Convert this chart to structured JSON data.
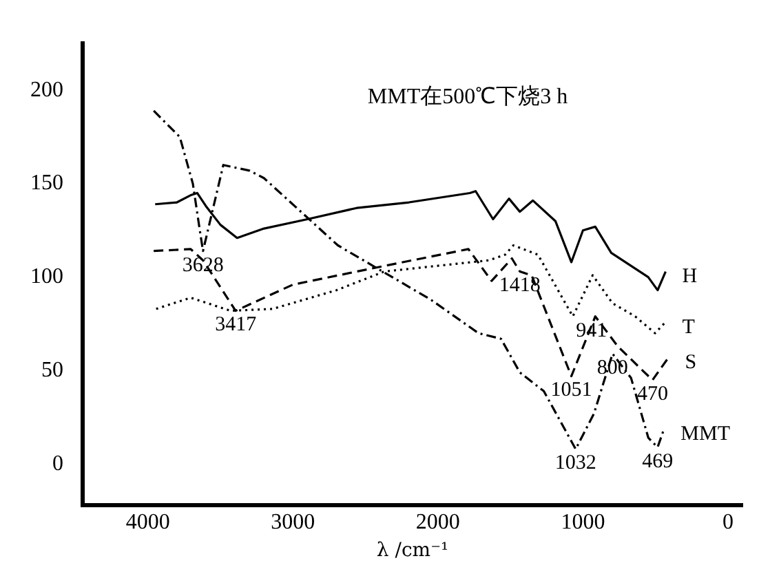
{
  "chart_data": {
    "type": "line",
    "title": "MMT在500℃下烧3 h",
    "xlabel": "λ /cm⁻¹",
    "xlim": [
      4450,
      -100
    ],
    "xticks": [
      4000,
      3000,
      2000,
      1000,
      0
    ],
    "ylim": [
      -22,
      225
    ],
    "yticks": [
      0,
      50,
      100,
      150,
      200
    ],
    "grid": false,
    "legend": false,
    "marker": "none",
    "series": [
      {
        "name": "H",
        "color": "#000000",
        "line_style": "solid",
        "x": [
          3950,
          3800,
          3700,
          3660,
          3600,
          3500,
          3385,
          3200,
          2900,
          2560,
          2200,
          1780,
          1740,
          1620,
          1510,
          1435,
          1345,
          1190,
          1080,
          1000,
          915,
          805,
          550,
          485,
          430
        ],
        "values": [
          139,
          140,
          144,
          145,
          138,
          128,
          121,
          126,
          131,
          137,
          140,
          145,
          146,
          131,
          142,
          135,
          141,
          130,
          108,
          125,
          127,
          113,
          100,
          93,
          103
        ]
      },
      {
        "name": "T",
        "color": "#000000",
        "line_style": "dotted",
        "x": [
          3943,
          3705,
          3430,
          3140,
          2700,
          2370,
          1650,
          1537,
          1480,
          1310,
          1070,
          933,
          796,
          640,
          503,
          430
        ],
        "values": [
          83,
          89,
          82,
          83,
          93,
          103,
          109,
          112,
          117,
          112,
          79,
          101,
          86,
          79,
          70,
          76
        ]
      },
      {
        "name": "S",
        "color": "#000000",
        "line_style": "dashed",
        "x": [
          3960,
          3705,
          3620,
          3395,
          3000,
          2370,
          1790,
          1630,
          1490,
          1435,
          1354,
          1080,
          915,
          760,
          575,
          520,
          410
        ],
        "values": [
          114,
          115,
          109,
          82,
          96,
          106,
          115,
          98,
          110,
          103,
          101,
          47,
          79,
          63,
          49,
          45,
          57
        ]
      },
      {
        "name": "MMT",
        "color": "#000000",
        "line_style": "dashdot",
        "x": [
          3960,
          3780,
          3690,
          3640,
          3620,
          3480,
          3300,
          3200,
          2690,
          2050,
          1720,
          1565,
          1435,
          1270,
          1050,
          924,
          796,
          668,
          549,
          485,
          440
        ],
        "values": [
          189,
          175,
          150,
          124,
          114,
          160,
          157,
          153,
          117,
          88,
          70,
          67,
          49,
          39,
          8,
          27,
          59,
          46,
          14,
          9,
          19
        ]
      }
    ],
    "annotations": [
      {
        "text": "3628",
        "x": 3620,
        "y": 114
      },
      {
        "text": "3417",
        "x": 3395,
        "y": 82
      },
      {
        "text": "1418",
        "x": 1435,
        "y": 103
      },
      {
        "text": "941",
        "x": 941,
        "y": 79
      },
      {
        "text": "1051",
        "x": 1080,
        "y": 47
      },
      {
        "text": "800",
        "x": 796,
        "y": 59
      },
      {
        "text": "470",
        "x": 520,
        "y": 45
      },
      {
        "text": "1032",
        "x": 1050,
        "y": 8
      },
      {
        "text": "469",
        "x": 485,
        "y": 9
      }
    ]
  }
}
